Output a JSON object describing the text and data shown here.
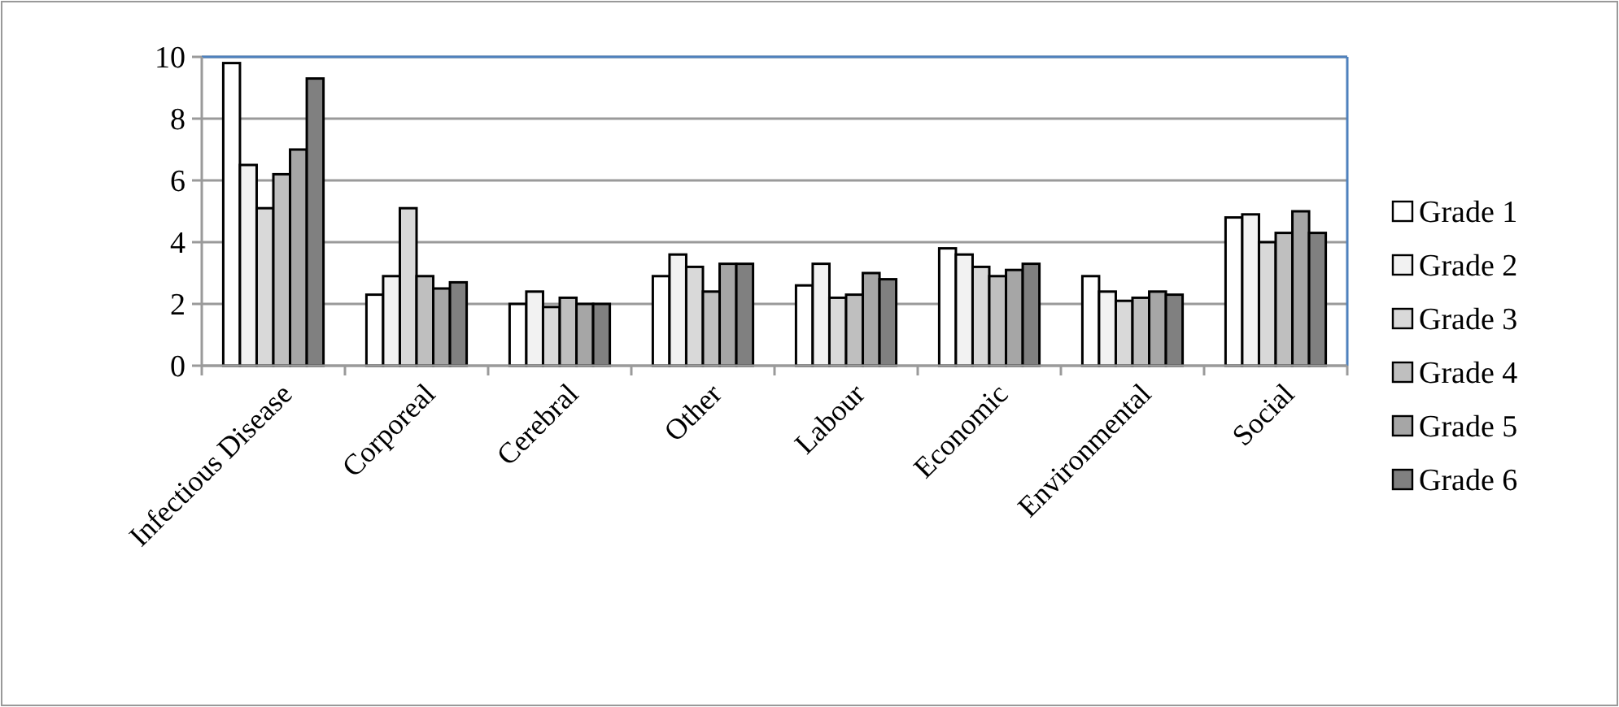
{
  "chart_data": {
    "type": "bar",
    "categories": [
      "Infectious Disease",
      "Corporeal",
      "Cerebral",
      "Other",
      "Labour",
      "Economic",
      "Environmental",
      "Social"
    ],
    "series": [
      {
        "name": "Grade 1",
        "color": "#ffffff",
        "values": [
          9.8,
          2.3,
          2.0,
          2.9,
          2.6,
          3.8,
          2.9,
          4.8
        ]
      },
      {
        "name": "Grade 2",
        "color": "#f2f2f2",
        "values": [
          6.5,
          2.9,
          2.4,
          3.6,
          3.3,
          3.6,
          2.4,
          4.9
        ]
      },
      {
        "name": "Grade 3",
        "color": "#d9d9d9",
        "values": [
          5.1,
          5.1,
          1.9,
          3.2,
          2.2,
          3.2,
          2.1,
          4.0
        ]
      },
      {
        "name": "Grade 4",
        "color": "#bfbfbf",
        "values": [
          6.2,
          2.9,
          2.2,
          2.4,
          2.3,
          2.9,
          2.2,
          4.3
        ]
      },
      {
        "name": "Grade 5",
        "color": "#a6a6a6",
        "values": [
          7.0,
          2.5,
          2.0,
          3.3,
          3.0,
          3.1,
          2.4,
          5.0
        ]
      },
      {
        "name": "Grade 6",
        "color": "#808080",
        "values": [
          9.3,
          2.7,
          2.0,
          3.3,
          2.8,
          3.3,
          2.3,
          4.3
        ]
      }
    ],
    "ylim": [
      0,
      10
    ],
    "yticks": [
      0,
      2,
      4,
      6,
      8,
      10
    ],
    "grid": "y",
    "legend": "right"
  }
}
